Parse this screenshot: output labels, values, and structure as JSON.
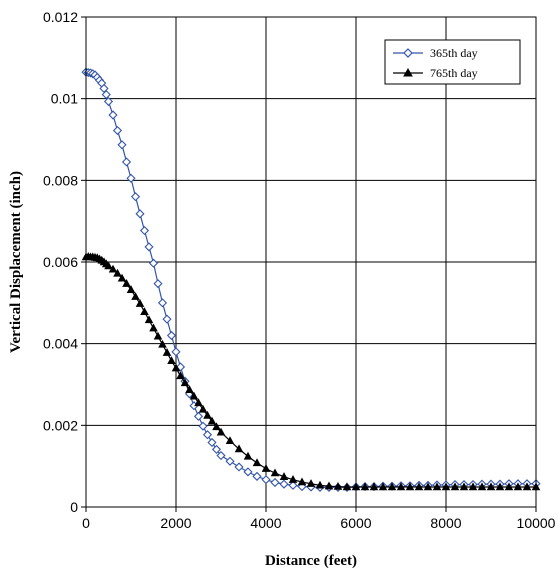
{
  "chart_data": {
    "type": "line",
    "title": "",
    "xlabel": "Distance (feet)",
    "ylabel": "Vertical Displacement (inch)",
    "xlim": [
      0,
      10000
    ],
    "ylim": [
      0,
      0.012
    ],
    "x_ticks": [
      "0",
      "2000",
      "4000",
      "6000",
      "8000",
      "10000"
    ],
    "y_ticks": [
      "0",
      "0.002",
      "0.004",
      "0.006",
      "0.008",
      "0.01",
      "0.012"
    ],
    "grid": true,
    "legend_position": "top-right",
    "series": [
      {
        "name": "365th day",
        "color": "#3355aa",
        "marker": "diamond-open",
        "points": [
          [
            0,
            0.01065
          ],
          [
            50,
            0.01064
          ],
          [
            100,
            0.01063
          ],
          [
            150,
            0.01061
          ],
          [
            200,
            0.01058
          ],
          [
            250,
            0.01052
          ],
          [
            300,
            0.01045
          ],
          [
            350,
            0.01038
          ],
          [
            400,
            0.01025
          ],
          [
            450,
            0.0101
          ],
          [
            500,
            0.00993
          ],
          [
            600,
            0.0096
          ],
          [
            700,
            0.00922
          ],
          [
            800,
            0.00887
          ],
          [
            900,
            0.00845
          ],
          [
            1000,
            0.00805
          ],
          [
            1100,
            0.0076
          ],
          [
            1200,
            0.00718
          ],
          [
            1300,
            0.00677
          ],
          [
            1400,
            0.00637
          ],
          [
            1500,
            0.00597
          ],
          [
            1600,
            0.00547
          ],
          [
            1700,
            0.005
          ],
          [
            1800,
            0.0046
          ],
          [
            1900,
            0.0042
          ],
          [
            2000,
            0.0038
          ],
          [
            2100,
            0.00343
          ],
          [
            2200,
            0.00308
          ],
          [
            2300,
            0.00277
          ],
          [
            2400,
            0.00248
          ],
          [
            2500,
            0.00222
          ],
          [
            2600,
            0.00198
          ],
          [
            2700,
            0.00177
          ],
          [
            2800,
            0.00158
          ],
          [
            2900,
            0.00141
          ],
          [
            3000,
            0.00126
          ],
          [
            3200,
            0.00112
          ],
          [
            3400,
            0.00098
          ],
          [
            3600,
            0.00086
          ],
          [
            3800,
            0.00075
          ],
          [
            4000,
            0.00067
          ],
          [
            4200,
            0.0006
          ],
          [
            4400,
            0.00056
          ],
          [
            4600,
            0.00053
          ],
          [
            4800,
            0.0005
          ],
          [
            5000,
            0.00049
          ],
          [
            5200,
            0.00048
          ],
          [
            5400,
            0.00048
          ],
          [
            5600,
            0.00048
          ],
          [
            5800,
            0.00048
          ],
          [
            6000,
            0.00049
          ],
          [
            6200,
            0.0005
          ],
          [
            6400,
            0.0005
          ],
          [
            6600,
            0.00051
          ],
          [
            6800,
            0.00051
          ],
          [
            7000,
            0.00052
          ],
          [
            7200,
            0.00052
          ],
          [
            7400,
            0.00053
          ],
          [
            7600,
            0.00053
          ],
          [
            7800,
            0.00054
          ],
          [
            8000,
            0.00054
          ],
          [
            8200,
            0.00055
          ],
          [
            8400,
            0.00055
          ],
          [
            8600,
            0.00055
          ],
          [
            8800,
            0.00056
          ],
          [
            9000,
            0.00056
          ],
          [
            9200,
            0.00056
          ],
          [
            9400,
            0.00057
          ],
          [
            9600,
            0.00057
          ],
          [
            9800,
            0.00057
          ],
          [
            10000,
            0.00057
          ]
        ]
      },
      {
        "name": "765th day",
        "color": "#000000",
        "marker": "triangle-filled",
        "points": [
          [
            0,
            0.00612
          ],
          [
            50,
            0.00613
          ],
          [
            100,
            0.00612
          ],
          [
            150,
            0.00612
          ],
          [
            200,
            0.00611
          ],
          [
            250,
            0.0061
          ],
          [
            300,
            0.00607
          ],
          [
            350,
            0.00604
          ],
          [
            400,
            0.006
          ],
          [
            450,
            0.00595
          ],
          [
            500,
            0.0059
          ],
          [
            600,
            0.00582
          ],
          [
            700,
            0.00572
          ],
          [
            800,
            0.0056
          ],
          [
            900,
            0.00547
          ],
          [
            1000,
            0.00532
          ],
          [
            1100,
            0.00515
          ],
          [
            1200,
            0.00498
          ],
          [
            1300,
            0.00478
          ],
          [
            1400,
            0.00458
          ],
          [
            1500,
            0.00438
          ],
          [
            1600,
            0.00418
          ],
          [
            1700,
            0.00398
          ],
          [
            1800,
            0.00378
          ],
          [
            1900,
            0.00358
          ],
          [
            2000,
            0.0034
          ],
          [
            2100,
            0.00321
          ],
          [
            2200,
            0.00304
          ],
          [
            2300,
            0.00287
          ],
          [
            2400,
            0.00271
          ],
          [
            2500,
            0.00255
          ],
          [
            2600,
            0.00239
          ],
          [
            2700,
            0.00224
          ],
          [
            2800,
            0.0021
          ],
          [
            2900,
            0.00196
          ],
          [
            3000,
            0.00183
          ],
          [
            3200,
            0.00162
          ],
          [
            3400,
            0.00142
          ],
          [
            3600,
            0.00124
          ],
          [
            3800,
            0.00108
          ],
          [
            4000,
            0.00094
          ],
          [
            4200,
            0.00083
          ],
          [
            4400,
            0.00074
          ],
          [
            4600,
            0.00067
          ],
          [
            4800,
            0.00061
          ],
          [
            5000,
            0.00057
          ],
          [
            5200,
            0.00053
          ],
          [
            5400,
            0.00051
          ],
          [
            5600,
            0.0005
          ],
          [
            5800,
            0.00049
          ],
          [
            6000,
            0.00049
          ],
          [
            6200,
            0.00049
          ],
          [
            6400,
            0.00049
          ],
          [
            6600,
            0.00049
          ],
          [
            6800,
            0.00049
          ],
          [
            7000,
            0.00049
          ],
          [
            7200,
            0.00049
          ],
          [
            7400,
            0.00049
          ],
          [
            7600,
            0.00049
          ],
          [
            7800,
            0.00049
          ],
          [
            8000,
            0.00049
          ],
          [
            8200,
            0.00049
          ],
          [
            8400,
            0.00049
          ],
          [
            8600,
            0.00049
          ],
          [
            8800,
            0.00049
          ],
          [
            9000,
            0.00049
          ],
          [
            9200,
            0.00049
          ],
          [
            9400,
            0.00049
          ],
          [
            9600,
            0.00049
          ],
          [
            9800,
            0.00049
          ],
          [
            10000,
            0.00049
          ]
        ]
      }
    ]
  }
}
